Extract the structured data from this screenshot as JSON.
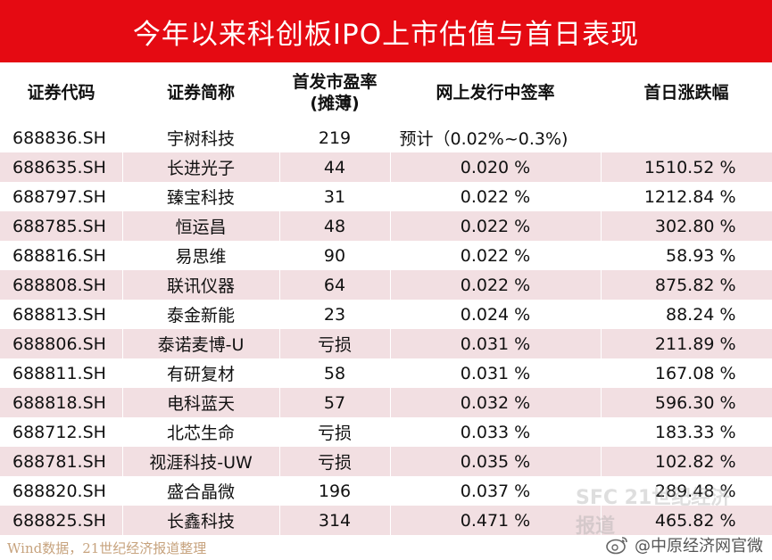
{
  "title": "今年以来科创板IPO上市估值与首日表现",
  "table": {
    "headers": {
      "code": "证券代码",
      "name": "证券简称",
      "pe_line1": "首发市盈率",
      "pe_line2": "(摊薄)",
      "rate": "网上发行中签率",
      "change": "首日涨跌幅"
    },
    "rows": [
      {
        "code": "688836.SH",
        "name": "宇树科技",
        "pe": "219",
        "rate": "预计（0.02%~0.3%)",
        "change": ""
      },
      {
        "code": "688635.SH",
        "name": "长进光子",
        "pe": "44",
        "rate": "0.020 %",
        "change": "1510.52 %"
      },
      {
        "code": "688797.SH",
        "name": "臻宝科技",
        "pe": "31",
        "rate": "0.022 %",
        "change": "1212.84 %"
      },
      {
        "code": "688785.SH",
        "name": "恒运昌",
        "pe": "48",
        "rate": "0.022 %",
        "change": "302.80 %"
      },
      {
        "code": "688816.SH",
        "name": "易思维",
        "pe": "90",
        "rate": "0.022 %",
        "change": "58.93 %"
      },
      {
        "code": "688808.SH",
        "name": "联讯仪器",
        "pe": "64",
        "rate": "0.022 %",
        "change": "875.82 %"
      },
      {
        "code": "688813.SH",
        "name": "泰金新能",
        "pe": "23",
        "rate": "0.024 %",
        "change": "88.24 %"
      },
      {
        "code": "688806.SH",
        "name": "泰诺麦博-U",
        "pe": "亏损",
        "rate": "0.031 %",
        "change": "211.89 %"
      },
      {
        "code": "688811.SH",
        "name": "有研复材",
        "pe": "58",
        "rate": "0.031 %",
        "change": "167.08 %"
      },
      {
        "code": "688818.SH",
        "name": "电科蓝天",
        "pe": "57",
        "rate": "0.032 %",
        "change": "596.30 %"
      },
      {
        "code": "688712.SH",
        "name": "北芯生命",
        "pe": "亏损",
        "rate": "0.033 %",
        "change": "183.33 %"
      },
      {
        "code": "688781.SH",
        "name": "视涯科技-UW",
        "pe": "亏损",
        "rate": "0.035 %",
        "change": "102.82 %"
      },
      {
        "code": "688820.SH",
        "name": "盛合晶微",
        "pe": "196",
        "rate": "0.037 %",
        "change": "289.48 %"
      },
      {
        "code": "688825.SH",
        "name": "长鑫科技",
        "pe": "314",
        "rate": "0.471 %",
        "change": "465.82 %"
      }
    ]
  },
  "footer": {
    "source": "Wind数据，21世纪经济报道整理",
    "weibo_handle": "@中原经济网官微",
    "watermark": "SFC 21世纪经济报道"
  },
  "colors": {
    "header_red": "#e50a12",
    "row_stripe": "#f2dfe2",
    "source_text": "#c7a37e"
  }
}
